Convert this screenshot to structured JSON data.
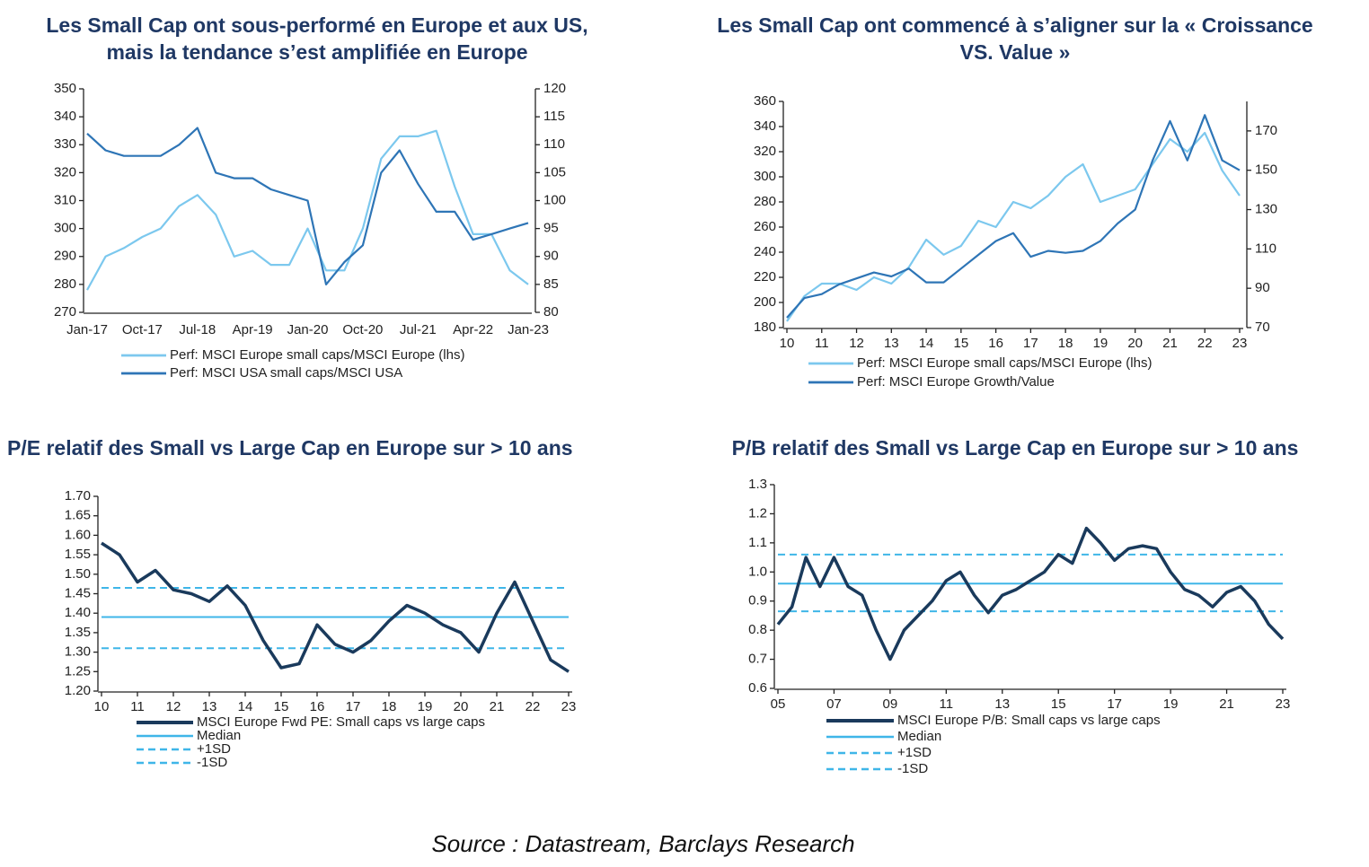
{
  "chart_data": [
    {
      "type": "line",
      "title": [
        "Les Small Cap ont sous-performé en Europe et aux US,",
        "mais la tendance s’est amplifiée en Europe"
      ],
      "categories": [
        "Jan-17",
        null,
        null,
        "Oct-17",
        null,
        null,
        "Jul-18",
        null,
        null,
        "Apr-19",
        null,
        null,
        "Jan-20",
        null,
        null,
        "Oct-20",
        null,
        null,
        "Jul-21",
        null,
        null,
        "Apr-22",
        null,
        null,
        "Jan-23"
      ],
      "series": [
        {
          "name": "Perf: MSCI Europe small caps/MSCI Europe (lhs)",
          "color": "#7cc8ee",
          "values": [
            278,
            290,
            293,
            297,
            300,
            308,
            312,
            305,
            290,
            292,
            287,
            287,
            300,
            285,
            285,
            300,
            325,
            333,
            333,
            335,
            315,
            298,
            298,
            285,
            280
          ]
        },
        {
          "name": "Perf: MSCI USA small caps/MSCI USA",
          "color": "#2e75b6",
          "axis": "y2",
          "values": [
            112,
            109,
            108,
            108,
            108,
            110,
            113,
            105,
            104,
            104,
            102,
            101,
            100,
            85,
            89,
            92,
            105,
            109,
            103,
            98,
            98,
            93,
            94,
            95,
            96
          ]
        }
      ],
      "ylim": [
        270,
        350
      ],
      "yticks": [
        270,
        280,
        290,
        300,
        310,
        320,
        330,
        340,
        350
      ],
      "y2lim": [
        80,
        120
      ],
      "y2ticks": [
        80,
        85,
        90,
        95,
        100,
        105,
        110,
        115,
        120
      ]
    },
    {
      "type": "line",
      "title": [
        "Les Small Cap ont commencé à s’aligner sur la « Croissance",
        "VS. Value »"
      ],
      "x": [
        10,
        10.5,
        11,
        11.5,
        12,
        12.5,
        13,
        13.5,
        14,
        14.5,
        15,
        15.5,
        16,
        16.5,
        17,
        17.5,
        18,
        18.5,
        19,
        19.5,
        20,
        20.5,
        21,
        21.5,
        22,
        22.5,
        23
      ],
      "series": [
        {
          "name": "Perf: MSCI Europe small caps/MSCI Europe (lhs)",
          "color": "#7cc8ee",
          "values": [
            185,
            205,
            215,
            215,
            210,
            220,
            215,
            228,
            250,
            238,
            245,
            265,
            260,
            280,
            275,
            285,
            300,
            310,
            280,
            285,
            290,
            310,
            330,
            320,
            335,
            305,
            285
          ]
        },
        {
          "name": "Perf: MSCI Europe Growth/Value",
          "color": "#2e75b6",
          "axis": "y2",
          "values": [
            75,
            85,
            87,
            92,
            95,
            98,
            96,
            100,
            93,
            93,
            100,
            107,
            114,
            118,
            106,
            109,
            108,
            109,
            114,
            123,
            130,
            155,
            175,
            155,
            178,
            155,
            150
          ]
        }
      ],
      "xlim": [
        10,
        23
      ],
      "xticks": [
        10,
        11,
        12,
        13,
        14,
        15,
        16,
        17,
        18,
        19,
        20,
        21,
        22,
        23
      ],
      "ylim": [
        180,
        360
      ],
      "yticks": [
        180,
        200,
        220,
        240,
        260,
        280,
        300,
        320,
        340,
        360
      ],
      "y2lim": [
        70,
        185
      ],
      "y2ticks": [
        70,
        90,
        110,
        130,
        150,
        170
      ]
    },
    {
      "type": "line",
      "title": [
        "P/E relatif des Small vs Large Cap en Europe sur > 10 ans"
      ],
      "x": [
        10,
        10.5,
        11,
        11.5,
        12,
        12.5,
        13,
        13.5,
        14,
        14.5,
        15,
        15.5,
        16,
        16.5,
        17,
        17.5,
        18,
        18.5,
        19,
        19.5,
        20,
        20.5,
        21,
        21.5,
        22,
        22.5,
        23
      ],
      "series": [
        {
          "name": "MSCI Europe Fwd PE: Small caps vs large caps",
          "color": "#1a3a5c",
          "values": [
            1.58,
            1.55,
            1.48,
            1.51,
            1.46,
            1.45,
            1.43,
            1.47,
            1.42,
            1.33,
            1.26,
            1.27,
            1.37,
            1.32,
            1.3,
            1.33,
            1.38,
            1.42,
            1.4,
            1.37,
            1.35,
            1.3,
            1.4,
            1.48,
            1.38,
            1.28,
            1.25
          ]
        }
      ],
      "reference_lines": [
        {
          "name": "Median",
          "value": 1.39,
          "color": "#3fb6e8",
          "dashed": false
        },
        {
          "name": "+1SD",
          "value": 1.465,
          "color": "#3fb6e8",
          "dashed": true
        },
        {
          "name": "-1SD",
          "value": 1.31,
          "color": "#3fb6e8",
          "dashed": true
        }
      ],
      "xlim": [
        10,
        23
      ],
      "xticks": [
        10,
        11,
        12,
        13,
        14,
        15,
        16,
        17,
        18,
        19,
        20,
        21,
        22,
        23
      ],
      "ylim": [
        1.2,
        1.7
      ],
      "yticks": [
        {
          "value": 1.2,
          "label": "1.20"
        },
        1.25,
        {
          "value": 1.3,
          "label": "1.30"
        },
        1.35,
        {
          "value": 1.4,
          "label": "1.40"
        },
        1.45,
        {
          "value": 1.5,
          "label": "1.50"
        },
        1.55,
        {
          "value": 1.6,
          "label": "1.60"
        },
        1.65,
        {
          "value": 1.7,
          "label": "1.70"
        }
      ]
    },
    {
      "type": "line",
      "title": [
        "P/B relatif des Small vs Large Cap en Europe sur > 10 ans"
      ],
      "x": [
        5,
        5.5,
        6,
        6.5,
        7,
        7.5,
        8,
        8.5,
        9,
        9.5,
        10,
        10.5,
        11,
        11.5,
        12,
        12.5,
        13,
        13.5,
        14,
        14.5,
        15,
        15.5,
        16,
        16.5,
        17,
        17.5,
        18,
        18.5,
        19,
        19.5,
        20,
        20.5,
        21,
        21.5,
        22,
        22.5,
        23
      ],
      "series": [
        {
          "name": "MSCI Europe P/B: Small caps vs large caps",
          "color": "#1a3a5c",
          "values": [
            0.82,
            0.88,
            1.05,
            0.95,
            1.05,
            0.95,
            0.92,
            0.8,
            0.7,
            0.8,
            0.85,
            0.9,
            0.97,
            1.0,
            0.92,
            0.86,
            0.92,
            0.94,
            0.97,
            1.0,
            1.06,
            1.03,
            1.15,
            1.1,
            1.04,
            1.08,
            1.09,
            1.08,
            1.0,
            0.94,
            0.92,
            0.88,
            0.93,
            0.95,
            0.9,
            0.82,
            0.77
          ]
        }
      ],
      "reference_lines": [
        {
          "name": "Median",
          "value": 0.96,
          "color": "#3fb6e8",
          "dashed": false
        },
        {
          "name": "+1SD",
          "value": 1.06,
          "color": "#3fb6e8",
          "dashed": true
        },
        {
          "name": "-1SD",
          "value": 0.865,
          "color": "#3fb6e8",
          "dashed": true
        }
      ],
      "xlim": [
        5,
        23
      ],
      "xticks": [
        {
          "value": 5,
          "label": "05"
        },
        {
          "value": 7,
          "label": "07"
        },
        {
          "value": 9,
          "label": "09"
        },
        11,
        13,
        15,
        17,
        19,
        21,
        23
      ],
      "ylim": [
        0.6,
        1.3
      ],
      "yticks": [
        0.6,
        0.7,
        0.8,
        0.9,
        {
          "value": 1,
          "label": "1.0"
        },
        1.1,
        1.2,
        1.3
      ]
    }
  ],
  "source": "Source : Datastream, Barclays Research"
}
